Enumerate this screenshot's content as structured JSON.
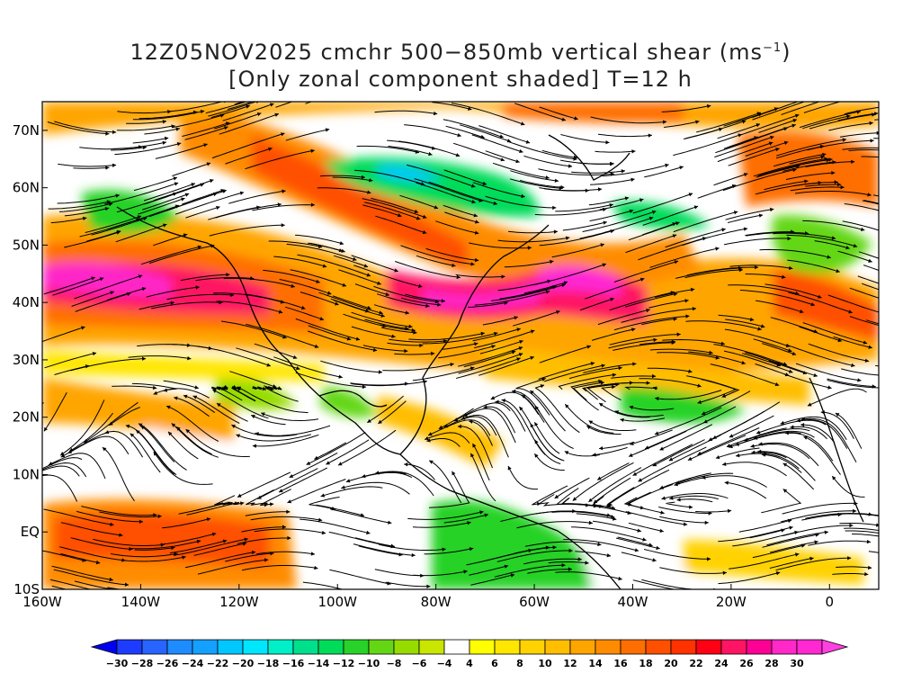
{
  "title": {
    "line1_prefix": "12Z05NOV2025 cmchr 500−850mb vertical shear (ms",
    "line1_sup": "−1",
    "line1_suffix": ")",
    "line2": "[Only zonal component shaded] T=12 h"
  },
  "map": {
    "lon_range": [
      -160,
      10
    ],
    "lat_range": [
      -10,
      75
    ],
    "lon_ticks": [
      {
        "value": -160,
        "label": "160W"
      },
      {
        "value": -140,
        "label": "140W"
      },
      {
        "value": -120,
        "label": "120W"
      },
      {
        "value": -100,
        "label": "100W"
      },
      {
        "value": -80,
        "label": "80W"
      },
      {
        "value": -60,
        "label": "60W"
      },
      {
        "value": -40,
        "label": "40W"
      },
      {
        "value": -20,
        "label": "20W"
      },
      {
        "value": 0,
        "label": "0"
      }
    ],
    "lat_ticks": [
      {
        "value": 70,
        "label": "70N"
      },
      {
        "value": 60,
        "label": "60N"
      },
      {
        "value": 50,
        "label": "50N"
      },
      {
        "value": 40,
        "label": "40N"
      },
      {
        "value": 30,
        "label": "30N"
      },
      {
        "value": 20,
        "label": "20N"
      },
      {
        "value": 10,
        "label": "10N"
      },
      {
        "value": 0,
        "label": "EQ"
      },
      {
        "value": -10,
        "label": "10S"
      }
    ]
  },
  "colorbar": {
    "labels": [
      "−30",
      "−28",
      "−26",
      "−24",
      "−22",
      "−20",
      "−18",
      "−16",
      "−14",
      "−12",
      "−10",
      "−8",
      "−6",
      "−4",
      "4",
      "6",
      "8",
      "10",
      "12",
      "14",
      "16",
      "18",
      "20",
      "22",
      "24",
      "26",
      "28",
      "30"
    ],
    "colors": [
      "#0000f0",
      "#1e3cff",
      "#2864ff",
      "#1e8cff",
      "#14a0ff",
      "#00c8ff",
      "#00e6ff",
      "#00f0c8",
      "#00e08c",
      "#00dc5a",
      "#28d228",
      "#64d714",
      "#96dc00",
      "#c8e600",
      "#ffffff",
      "#ffff00",
      "#ffe600",
      "#ffd200",
      "#ffbe00",
      "#ffa500",
      "#ff8c00",
      "#ff6e00",
      "#ff5000",
      "#ff3200",
      "#ff0014",
      "#ff1464",
      "#ff0096",
      "#ff28c8",
      "#ff28d2",
      "#ff40e0"
    ]
  }
}
